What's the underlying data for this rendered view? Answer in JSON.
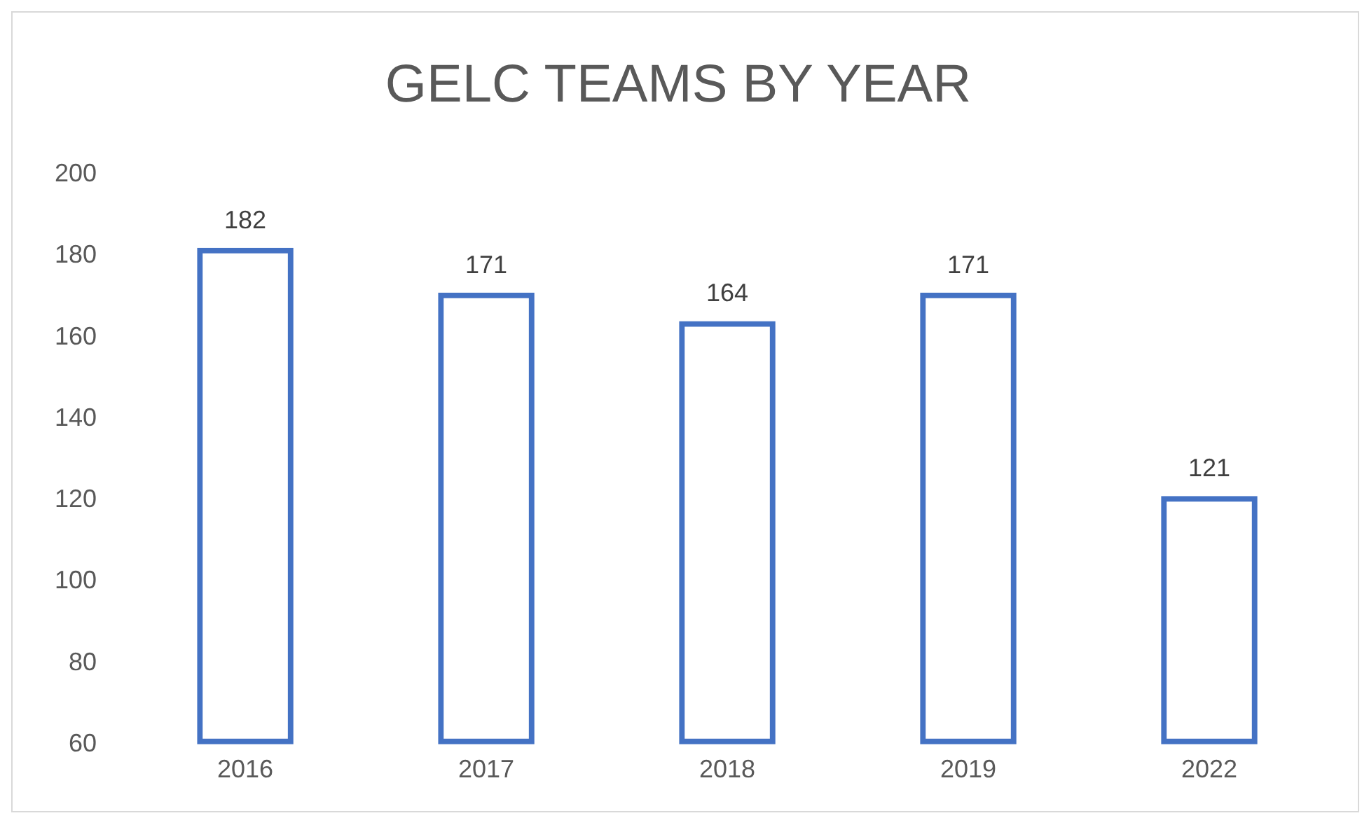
{
  "chart_data": {
    "type": "bar",
    "title": "GELC TEAMS BY YEAR",
    "categories": [
      "2016",
      "2017",
      "2018",
      "2019",
      "2022"
    ],
    "values": [
      182,
      171,
      164,
      171,
      121
    ],
    "color": "#4472c4",
    "ylim": [
      60,
      200
    ],
    "yticks": [
      60,
      80,
      100,
      120,
      140,
      160,
      180,
      200
    ],
    "grid": false,
    "data_labels": true
  }
}
